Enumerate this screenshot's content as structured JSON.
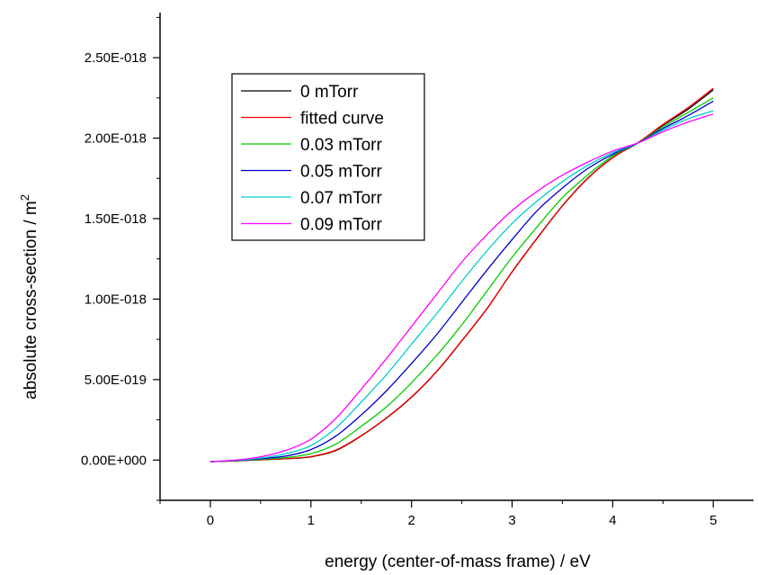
{
  "chart_data": {
    "type": "line",
    "xlabel": "energy (center-of-mass frame) / eV",
    "ylabel_main": "absolute cross-section / m",
    "ylabel_sup": "2",
    "xlim": [
      -0.5,
      5.4
    ],
    "ylim": [
      -2.5e-19,
      2.78e-18
    ],
    "x_ticks": [
      0,
      1,
      2,
      3,
      4,
      5
    ],
    "x_tick_labels": [
      "0",
      "1",
      "2",
      "3",
      "4",
      "5"
    ],
    "y_ticks": [
      0,
      5e-19,
      1e-18,
      1.5e-18,
      2e-18,
      2.5e-18
    ],
    "y_tick_labels": [
      "0.00E+000",
      "5.00E-019",
      "1.00E-018",
      "1.50E-018",
      "2.00E-018",
      "2.50E-018"
    ],
    "legend": {
      "placement": "top-left"
    },
    "x": [
      0,
      0.25,
      0.5,
      0.75,
      1.0,
      1.25,
      1.5,
      1.75,
      2.0,
      2.25,
      2.5,
      2.75,
      3.0,
      3.25,
      3.5,
      3.75,
      4.0,
      4.25,
      4.5,
      4.75,
      5.0
    ],
    "series": [
      {
        "name": "0 mTorr",
        "color": "#000000",
        "values": [
          -1e-20,
          -5e-21,
          2e-21,
          8e-21,
          2e-20,
          6e-20,
          1.5e-19,
          2.6e-19,
          3.9e-19,
          5.5e-19,
          7.4e-19,
          9.4e-19,
          1.17e-18,
          1.38e-18,
          1.58e-18,
          1.75e-18,
          1.88e-18,
          1.97e-18,
          2.08e-18,
          2.18e-18,
          2.3e-18
        ]
      },
      {
        "name": "fitted curve",
        "color": "#ff0000",
        "values": [
          -1e-20,
          -5e-21,
          3e-21,
          9e-21,
          2.2e-20,
          6.3e-20,
          1.52e-19,
          2.62e-19,
          3.92e-19,
          5.52e-19,
          7.42e-19,
          9.42e-19,
          1.168e-18,
          1.378e-18,
          1.578e-18,
          1.748e-18,
          1.878e-18,
          1.972e-18,
          2.085e-18,
          2.19e-18,
          2.31e-18
        ]
      },
      {
        "name": "0.03 mTorr",
        "color": "#00cc00",
        "values": [
          -1e-20,
          -4e-21,
          5e-21,
          1.5e-20,
          4e-20,
          1e-19,
          2.1e-19,
          3.3e-19,
          4.8e-19,
          6.5e-19,
          8.4e-19,
          1.05e-18,
          1.26e-18,
          1.45e-18,
          1.63e-18,
          1.77e-18,
          1.89e-18,
          1.97e-18,
          2.07e-18,
          2.16e-18,
          2.25e-18
        ]
      },
      {
        "name": "0.05 mTorr",
        "color": "#0000cc",
        "values": [
          -1e-20,
          -3e-21,
          8e-21,
          2.5e-20,
          6.5e-20,
          1.5e-19,
          2.8e-19,
          4.3e-19,
          6e-19,
          7.8e-19,
          9.8e-19,
          1.18e-18,
          1.37e-18,
          1.55e-18,
          1.69e-18,
          1.81e-18,
          1.9e-18,
          1.97e-18,
          2.06e-18,
          2.14e-18,
          2.23e-18
        ]
      },
      {
        "name": "0.07 mTorr",
        "color": "#00cccc",
        "values": [
          -1e-20,
          -2e-21,
          1.2e-20,
          4e-20,
          9e-20,
          2e-19,
          3.6e-19,
          5.3e-19,
          7.2e-19,
          9.1e-19,
          1.11e-18,
          1.3e-18,
          1.47e-18,
          1.61e-18,
          1.73e-18,
          1.83e-18,
          1.91e-18,
          1.97e-18,
          2.05e-18,
          2.12e-18,
          2.17e-18
        ]
      },
      {
        "name": "0.09 mTorr",
        "color": "#ff00ff",
        "values": [
          -1e-20,
          0,
          2e-20,
          6e-20,
          1.3e-19,
          2.6e-19,
          4.4e-19,
          6.3e-19,
          8.3e-19,
          1.03e-18,
          1.23e-18,
          1.4e-18,
          1.55e-18,
          1.67e-18,
          1.77e-18,
          1.85e-18,
          1.92e-18,
          1.97e-18,
          2.04e-18,
          2.1e-18,
          2.15e-18
        ]
      }
    ]
  }
}
